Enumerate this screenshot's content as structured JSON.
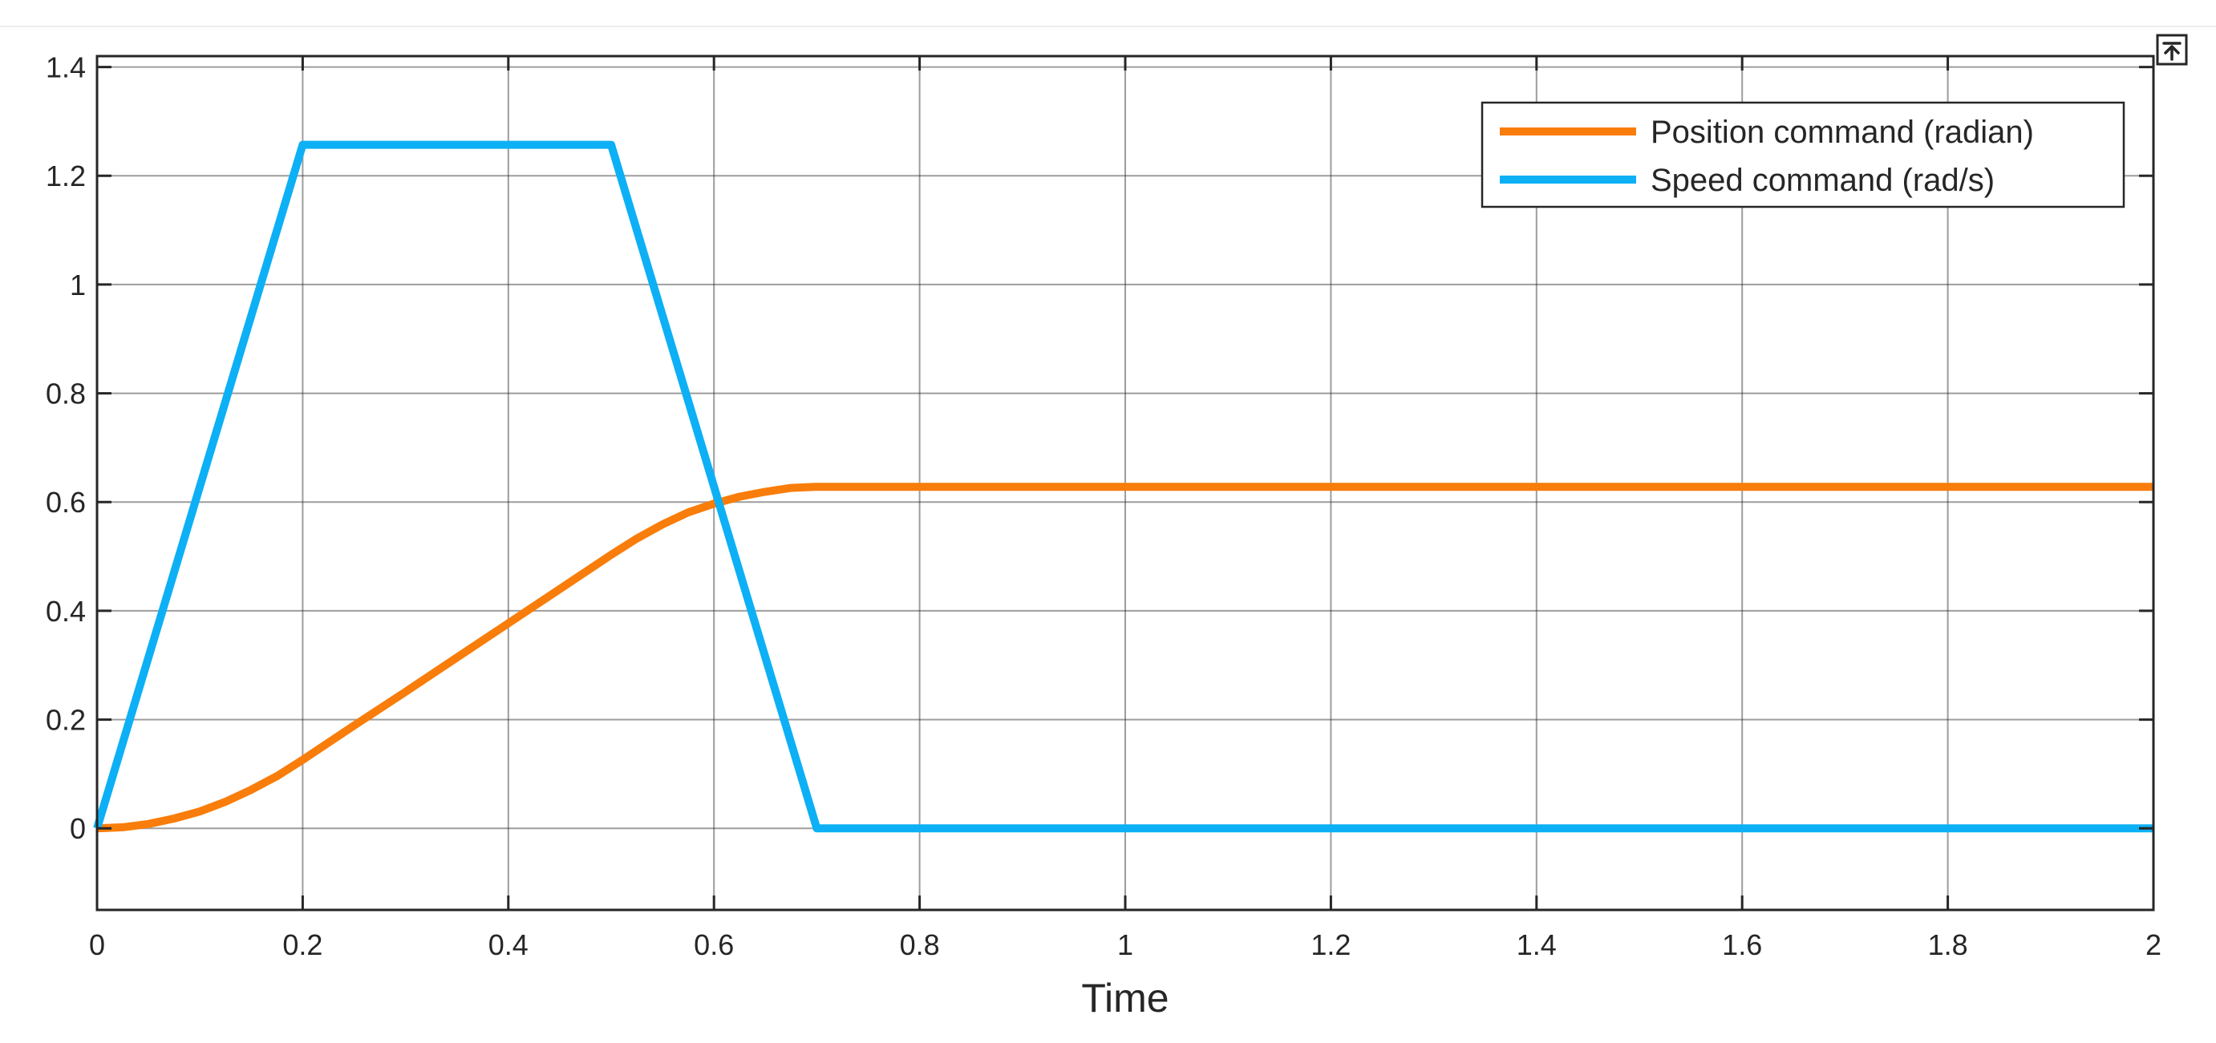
{
  "chart_data": {
    "type": "line",
    "title": "",
    "xlabel": "Time",
    "ylabel": "",
    "xlim": [
      0,
      2
    ],
    "ylim": [
      -0.15,
      1.42
    ],
    "grid": true,
    "legend_position": "top-right",
    "x_ticks": [
      "0",
      "0.2",
      "0.4",
      "0.6",
      "0.8",
      "1",
      "1.2",
      "1.4",
      "1.6",
      "1.8",
      "2"
    ],
    "y_ticks": [
      "0",
      "0.2",
      "0.4",
      "0.6",
      "0.8",
      "1",
      "1.2",
      "1.4"
    ],
    "series": [
      {
        "name": "Position command (radian)",
        "color": "#F97D0A",
        "x": [
          0,
          0.025,
          0.05,
          0.075,
          0.1,
          0.125,
          0.15,
          0.175,
          0.2,
          0.25,
          0.3,
          0.35,
          0.4,
          0.45,
          0.5,
          0.525,
          0.55,
          0.575,
          0.6,
          0.625,
          0.65,
          0.675,
          0.7,
          0.8,
          1.0,
          1.2,
          1.4,
          1.6,
          1.8,
          2.0
        ],
        "y": [
          0,
          0.002,
          0.008,
          0.018,
          0.031,
          0.049,
          0.071,
          0.096,
          0.126,
          0.189,
          0.251,
          0.314,
          0.377,
          0.44,
          0.503,
          0.533,
          0.559,
          0.581,
          0.597,
          0.61,
          0.619,
          0.626,
          0.628,
          0.628,
          0.628,
          0.628,
          0.628,
          0.628,
          0.628,
          0.628
        ]
      },
      {
        "name": "Speed command (rad/s)",
        "color": "#0DB0F5",
        "x": [
          0,
          0.2,
          0.5,
          0.7,
          2.0
        ],
        "y": [
          0,
          1.257,
          1.257,
          0,
          0
        ]
      }
    ]
  },
  "toolbar": {
    "expand_icon": "expand-axes-icon"
  }
}
